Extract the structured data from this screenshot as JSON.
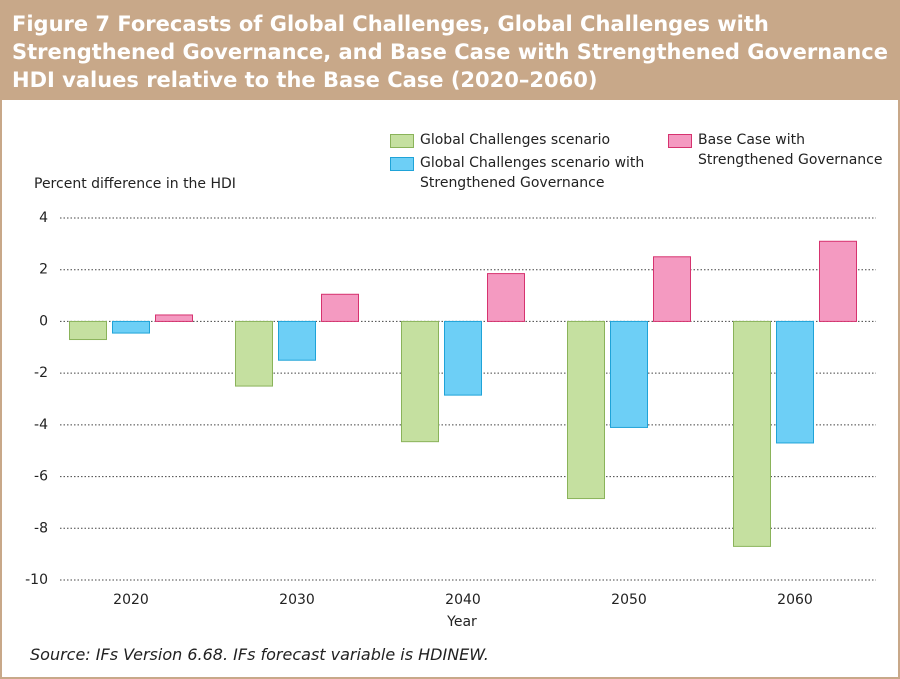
{
  "chart_data": {
    "type": "bar",
    "title": "Figure 7 Forecasts of Global Challenges, Global Challenges with Strengthened Governance, and Base Case with Strengthened Governance HDI values relative to the Base Case (2020–2060)",
    "y_label": "Percent difference in the HDI",
    "x_label": "Year",
    "source": "Source: IFs Version 6.68. IFs forecast variable is HDINEW.",
    "categories": [
      "2020",
      "2030",
      "2040",
      "2050",
      "2060"
    ],
    "series": [
      {
        "name": "Global Challenges scenario",
        "color": "#c5e0a0",
        "stroke": "#8ab35a",
        "values": [
          -0.7,
          -2.5,
          -4.65,
          -6.85,
          -8.7
        ]
      },
      {
        "name": "Global Challenges scenario with Strengthened Governance",
        "color": "#6dcff6",
        "stroke": "#1fa3d8",
        "values": [
          -0.45,
          -1.5,
          -2.85,
          -4.1,
          -4.7
        ]
      },
      {
        "name": "Base Case with Strengthened Governance",
        "color": "#f49ac1",
        "stroke": "#d6336f",
        "values": [
          0.25,
          1.05,
          1.85,
          2.5,
          3.1
        ]
      }
    ],
    "ylim": [
      -10,
      4
    ],
    "yticks": [
      -10,
      -8,
      -6,
      -4,
      -2,
      0,
      2,
      4
    ],
    "grid": true
  }
}
